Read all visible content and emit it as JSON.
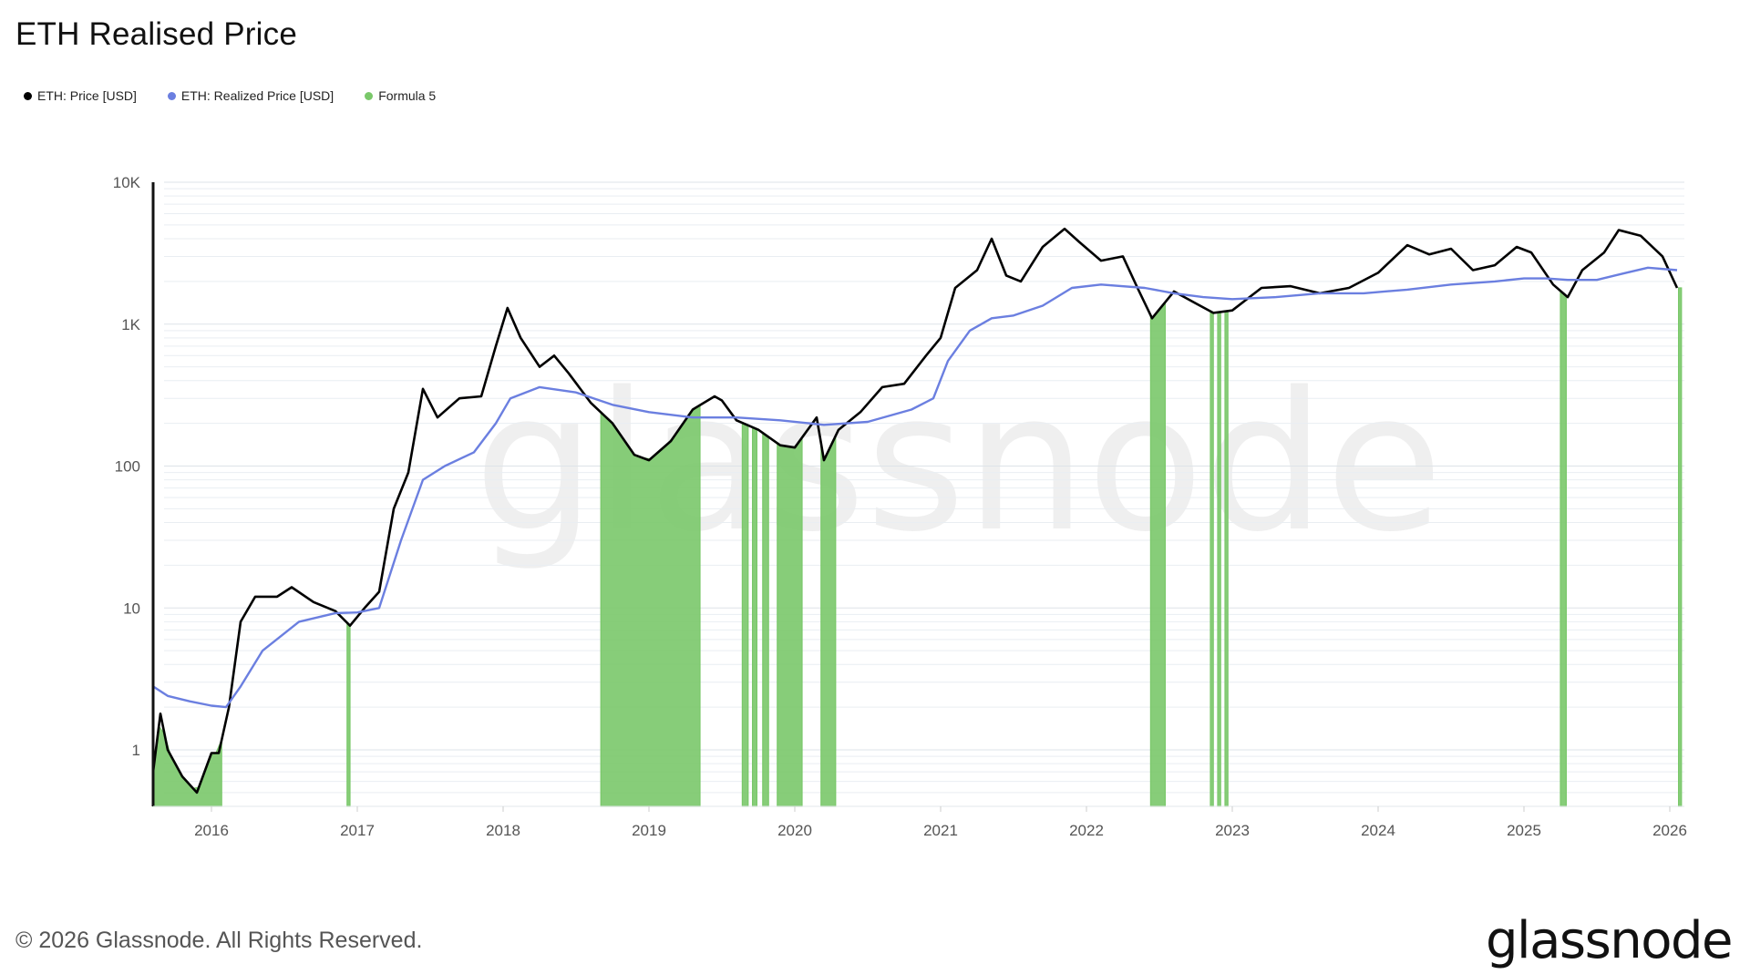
{
  "title": "ETH Realised Price",
  "footer": "© 2026 Glassnode. All Rights Reserved.",
  "brand": "glassnode",
  "watermark": "glassnode",
  "legend": [
    {
      "label": "ETH: Price [USD]",
      "color": "#000000"
    },
    {
      "label": "ETH: Realized Price [USD]",
      "color": "#6b7fe0"
    },
    {
      "label": "Formula 5",
      "color": "#7ac86a"
    }
  ],
  "chart_data": {
    "type": "line",
    "yscale": "log",
    "ylim": [
      0.4,
      10000
    ],
    "xlim": [
      2015.6,
      2026.1
    ],
    "y_ticks": [
      {
        "v": 1,
        "label": "1"
      },
      {
        "v": 10,
        "label": "10"
      },
      {
        "v": 100,
        "label": "100"
      },
      {
        "v": 1000,
        "label": "1K"
      },
      {
        "v": 10000,
        "label": "10K"
      }
    ],
    "x_ticks": [
      {
        "v": 2016,
        "label": "2016"
      },
      {
        "v": 2017,
        "label": "2017"
      },
      {
        "v": 2018,
        "label": "2018"
      },
      {
        "v": 2019,
        "label": "2019"
      },
      {
        "v": 2020,
        "label": "2020"
      },
      {
        "v": 2021,
        "label": "2021"
      },
      {
        "v": 2022,
        "label": "2022"
      },
      {
        "v": 2023,
        "label": "2023"
      },
      {
        "v": 2024,
        "label": "2024"
      },
      {
        "v": 2025,
        "label": "2025"
      },
      {
        "v": 2026,
        "label": "2026"
      }
    ],
    "grid": true,
    "legend_position": "top-left",
    "series": [
      {
        "name": "ETH: Price [USD]",
        "color": "#000000",
        "x": [
          2015.6,
          2015.65,
          2015.7,
          2015.8,
          2015.9,
          2016.0,
          2016.05,
          2016.12,
          2016.2,
          2016.3,
          2016.45,
          2016.55,
          2016.7,
          2016.85,
          2016.95,
          2017.05,
          2017.15,
          2017.25,
          2017.35,
          2017.45,
          2017.55,
          2017.7,
          2017.85,
          2017.95,
          2018.03,
          2018.12,
          2018.25,
          2018.35,
          2018.45,
          2018.6,
          2018.75,
          2018.9,
          2019.0,
          2019.15,
          2019.3,
          2019.45,
          2019.5,
          2019.6,
          2019.75,
          2019.9,
          2020.0,
          2020.15,
          2020.2,
          2020.3,
          2020.45,
          2020.6,
          2020.75,
          2020.9,
          2021.0,
          2021.1,
          2021.25,
          2021.35,
          2021.45,
          2021.55,
          2021.7,
          2021.85,
          2021.95,
          2022.1,
          2022.25,
          2022.35,
          2022.45,
          2022.6,
          2022.75,
          2022.87,
          2023.0,
          2023.2,
          2023.4,
          2023.6,
          2023.8,
          2024.0,
          2024.2,
          2024.35,
          2024.5,
          2024.65,
          2024.8,
          2024.95,
          2025.05,
          2025.2,
          2025.3,
          2025.4,
          2025.55,
          2025.65,
          2025.8,
          2025.95,
          2026.05
        ],
        "values": [
          0.7,
          1.8,
          1.0,
          0.65,
          0.5,
          0.95,
          0.95,
          2.0,
          8.0,
          12.0,
          12.0,
          14.0,
          11.0,
          9.5,
          7.5,
          10.0,
          13.0,
          50.0,
          90.0,
          350.0,
          220.0,
          300.0,
          310.0,
          700.0,
          1300.0,
          800.0,
          500.0,
          600.0,
          450.0,
          280.0,
          200.0,
          120.0,
          110.0,
          150.0,
          250.0,
          310.0,
          290.0,
          210.0,
          180.0,
          140.0,
          135.0,
          220.0,
          110.0,
          180.0,
          240.0,
          360.0,
          380.0,
          600.0,
          800.0,
          1800.0,
          2400.0,
          4000.0,
          2200.0,
          2000.0,
          3500.0,
          4700.0,
          3800.0,
          2800.0,
          3000.0,
          1800.0,
          1100.0,
          1700.0,
          1400.0,
          1200.0,
          1250.0,
          1800.0,
          1850.0,
          1650.0,
          1800.0,
          2300.0,
          3600.0,
          3100.0,
          3400.0,
          2400.0,
          2600.0,
          3500.0,
          3200.0,
          1900.0,
          1550.0,
          2400.0,
          3200.0,
          4600.0,
          4200.0,
          3000.0,
          1800.0
        ]
      },
      {
        "name": "ETH: Realized Price [USD]",
        "color": "#6b7fe0",
        "x": [
          2015.6,
          2015.7,
          2015.85,
          2016.0,
          2016.1,
          2016.2,
          2016.35,
          2016.6,
          2016.85,
          2017.0,
          2017.15,
          2017.3,
          2017.45,
          2017.6,
          2017.8,
          2017.95,
          2018.05,
          2018.25,
          2018.5,
          2018.75,
          2019.0,
          2019.3,
          2019.6,
          2019.9,
          2020.2,
          2020.5,
          2020.8,
          2020.95,
          2021.05,
          2021.2,
          2021.35,
          2021.5,
          2021.7,
          2021.9,
          2022.1,
          2022.4,
          2022.6,
          2022.8,
          2023.0,
          2023.3,
          2023.6,
          2023.9,
          2024.2,
          2024.5,
          2024.8,
          2025.0,
          2025.15,
          2025.3,
          2025.5,
          2025.7,
          2025.85,
          2026.05
        ],
        "values": [
          2.8,
          2.4,
          2.2,
          2.05,
          2.0,
          2.8,
          5.0,
          8.0,
          9.2,
          9.3,
          10.0,
          30.0,
          80.0,
          100.0,
          125.0,
          200.0,
          300.0,
          360.0,
          330.0,
          270.0,
          240.0,
          220.0,
          220.0,
          210.0,
          195.0,
          205.0,
          250.0,
          300.0,
          550.0,
          900.0,
          1100.0,
          1150.0,
          1350.0,
          1800.0,
          1900.0,
          1800.0,
          1650.0,
          1550.0,
          1500.0,
          1550.0,
          1650.0,
          1650.0,
          1750.0,
          1900.0,
          2000.0,
          2100.0,
          2100.0,
          2050.0,
          2050.0,
          2300.0,
          2500.0,
          2400.0
        ]
      }
    ],
    "formula_5_periods": [
      [
        2015.6,
        2016.07
      ],
      [
        2016.93,
        2016.95
      ],
      [
        2018.67,
        2019.35
      ],
      [
        2019.64,
        2019.68
      ],
      [
        2019.71,
        2019.74
      ],
      [
        2019.78,
        2019.82
      ],
      [
        2019.88,
        2020.05
      ],
      [
        2020.18,
        2020.28
      ],
      [
        2022.44,
        2022.54
      ],
      [
        2022.85,
        2022.87
      ],
      [
        2022.9,
        2022.92
      ],
      [
        2022.95,
        2022.97
      ],
      [
        2025.25,
        2025.29
      ],
      [
        2026.06,
        2026.08
      ]
    ]
  }
}
